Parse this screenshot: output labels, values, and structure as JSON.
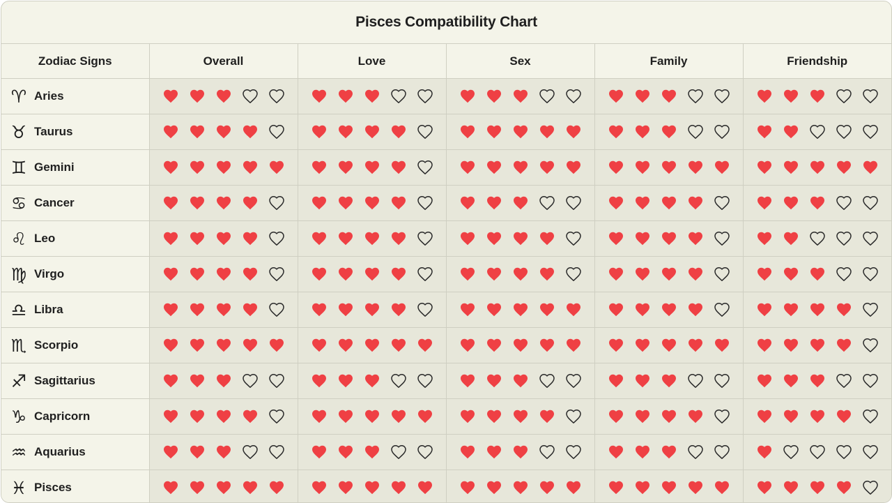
{
  "title": "Pisces Compatibility Chart",
  "colors": {
    "heart_filled": "#ef4044",
    "heart_outline": "#2a2a2a",
    "background": "#f4f4e9",
    "cell_background": "#e7e7da",
    "border": "#cfcfc2"
  },
  "chart_data": {
    "type": "table",
    "title": "Pisces Compatibility Chart",
    "row_header": "Zodiac Signs",
    "columns": [
      "Overall",
      "Love",
      "Sex",
      "Family",
      "Friendship"
    ],
    "scale_max": 5,
    "rows": [
      {
        "sign": "Aries",
        "icon": "aries-icon",
        "glyph": "♈",
        "ratings": [
          3,
          3,
          3,
          3,
          3
        ]
      },
      {
        "sign": "Taurus",
        "icon": "taurus-icon",
        "glyph": "♉",
        "ratings": [
          4,
          4,
          5,
          3,
          2
        ]
      },
      {
        "sign": "Gemini",
        "icon": "gemini-icon",
        "glyph": "♊",
        "ratings": [
          5,
          4,
          5,
          5,
          5
        ]
      },
      {
        "sign": "Cancer",
        "icon": "cancer-icon",
        "glyph": "♋",
        "ratings": [
          4,
          4,
          3,
          4,
          3
        ]
      },
      {
        "sign": "Leo",
        "icon": "leo-icon",
        "glyph": "♌",
        "ratings": [
          4,
          4,
          4,
          4,
          2
        ]
      },
      {
        "sign": "Virgo",
        "icon": "virgo-icon",
        "glyph": "♍",
        "ratings": [
          4,
          4,
          4,
          4,
          3
        ]
      },
      {
        "sign": "Libra",
        "icon": "libra-icon",
        "glyph": "♎",
        "ratings": [
          4,
          4,
          5,
          4,
          4
        ]
      },
      {
        "sign": "Scorpio",
        "icon": "scorpio-icon",
        "glyph": "♏",
        "ratings": [
          5,
          5,
          5,
          5,
          4
        ]
      },
      {
        "sign": "Sagittarius",
        "icon": "sagittarius-icon",
        "glyph": "♐",
        "ratings": [
          3,
          3,
          3,
          3,
          3
        ]
      },
      {
        "sign": "Capricorn",
        "icon": "capricorn-icon",
        "glyph": "♑",
        "ratings": [
          4,
          5,
          4,
          4,
          4
        ]
      },
      {
        "sign": "Aquarius",
        "icon": "aquarius-icon",
        "glyph": "♒",
        "ratings": [
          3,
          3,
          3,
          3,
          1
        ]
      },
      {
        "sign": "Pisces",
        "icon": "pisces-icon",
        "glyph": "♓",
        "ratings": [
          5,
          5,
          5,
          5,
          4
        ]
      }
    ]
  }
}
